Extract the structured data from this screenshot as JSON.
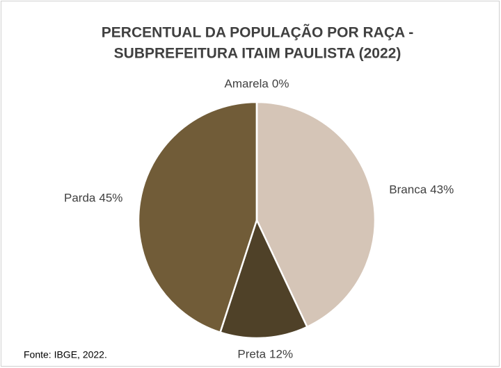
{
  "chart_data": {
    "type": "pie",
    "title": [
      "PERCENTUAL  DA POPULAÇÃO POR RAÇA -",
      "SUBPREFEITURA  ITAIM PAULISTA (2022)"
    ],
    "categories": [
      "Branca",
      "Preta",
      "Parda",
      "Amarela"
    ],
    "values": [
      43,
      12,
      45,
      0
    ],
    "value_labels": [
      "43%",
      "12%",
      "45%",
      "0%"
    ],
    "colors": [
      "#d5c5b7",
      "#4f4128",
      "#715c38",
      "#e6dccb"
    ],
    "source": "Fonte: IBGE, 2022."
  }
}
